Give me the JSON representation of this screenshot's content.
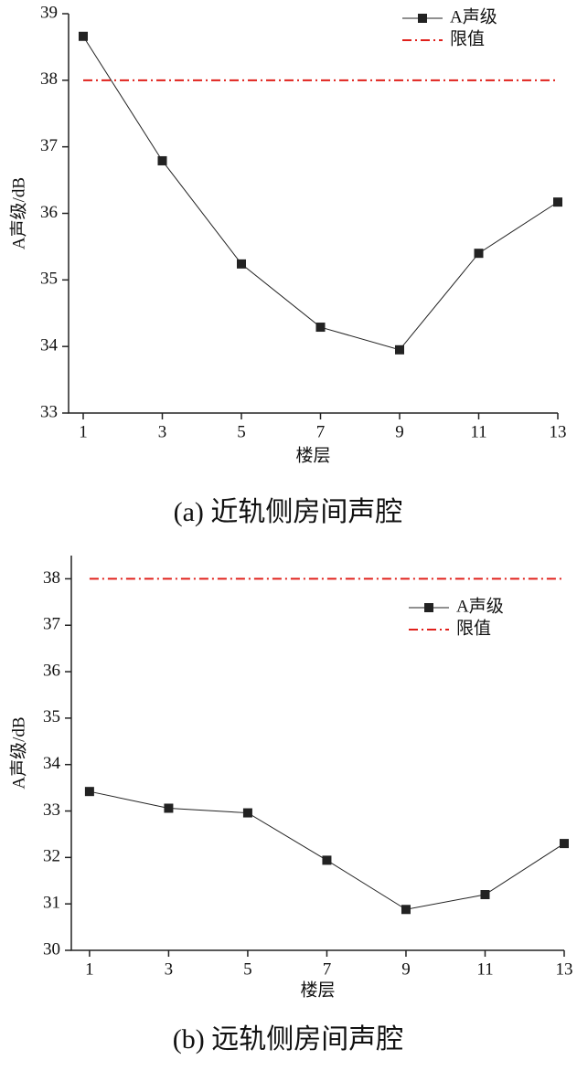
{
  "chart_data": [
    {
      "type": "line",
      "caption": "(a) 近轨侧房间声腔",
      "xlabel": "楼层",
      "ylabel": "A声级/dB",
      "x": [
        1,
        3,
        5,
        7,
        9,
        11,
        13
      ],
      "xlim": [
        0.63,
        13
      ],
      "xticks": [
        1,
        3,
        5,
        7,
        9,
        11,
        13
      ],
      "ylim": [
        33,
        39
      ],
      "yticks": [
        33,
        34,
        35,
        36,
        37,
        38,
        39
      ],
      "legend": "upper right",
      "series": [
        {
          "name": "A声级",
          "color": "#222222",
          "style": "solid",
          "marker": "square",
          "values": [
            38.66,
            36.79,
            35.24,
            34.29,
            33.95,
            35.4,
            36.17
          ]
        },
        {
          "name": "限值",
          "color": "#e0201b",
          "style": "dashdot",
          "values": [
            38,
            38,
            38,
            38,
            38,
            38,
            38
          ]
        }
      ]
    },
    {
      "type": "line",
      "caption": "(b) 远轨侧房间声腔",
      "xlabel": "楼层",
      "ylabel": "A声级/dB",
      "x": [
        1,
        3,
        5,
        7,
        9,
        11,
        13
      ],
      "xlim": [
        0.54,
        13
      ],
      "xticks": [
        1,
        3,
        5,
        7,
        9,
        11,
        13
      ],
      "ylim": [
        30,
        38.5
      ],
      "yticks": [
        30,
        31,
        32,
        33,
        34,
        35,
        36,
        37,
        38
      ],
      "legend": "upper right",
      "series": [
        {
          "name": "A声级",
          "color": "#222222",
          "style": "solid",
          "marker": "square",
          "values": [
            33.42,
            33.06,
            32.96,
            31.94,
            30.88,
            31.2,
            32.3
          ]
        },
        {
          "name": "限值",
          "color": "#e0201b",
          "style": "dashdot",
          "values": [
            38,
            38,
            38,
            38,
            38,
            38,
            38
          ]
        }
      ]
    }
  ]
}
